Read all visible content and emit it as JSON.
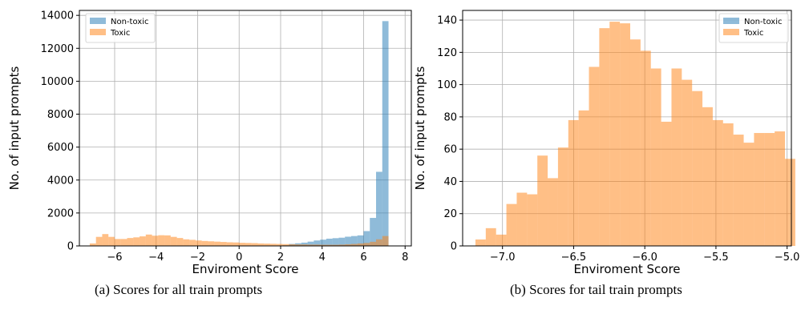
{
  "colors": {
    "non_toxic": "#1f77b4",
    "toxic": "#ff7f0e",
    "grid": "#b0b0b0"
  },
  "captions": [
    "(a) Scores for all train prompts",
    "(b) Scores for tail train prompts"
  ],
  "chart_data": [
    {
      "type": "bar",
      "histogram": true,
      "title": "",
      "xlabel": "Enviroment Score",
      "ylabel": "No. of input prompts",
      "xlim": [
        -7.7,
        8.3
      ],
      "ylim": [
        0,
        14300
      ],
      "xticks": [
        -6,
        -4,
        -2,
        0,
        2,
        4,
        6,
        8
      ],
      "yticks": [
        0,
        2000,
        4000,
        6000,
        8000,
        10000,
        12000,
        14000
      ],
      "xticklabels": [
        "−6",
        "−4",
        "−2",
        "0",
        "2",
        "4",
        "6",
        "8"
      ],
      "yticklabels": [
        "0",
        "2000",
        "4000",
        "6000",
        "8000",
        "10000",
        "12000",
        "14000"
      ],
      "grid": true,
      "legend": "top-left",
      "bin_start": -7.2,
      "bin_width": 0.3,
      "series": [
        {
          "name": "Non-toxic",
          "color": "#1f77b4",
          "alpha": 0.5,
          "values": [
            0,
            0,
            0,
            0,
            0,
            0,
            0,
            0,
            0,
            0,
            0,
            0,
            0,
            0,
            0,
            0,
            0,
            0,
            0,
            0,
            0,
            0,
            0,
            0,
            0,
            0,
            0,
            0,
            0,
            0,
            0,
            40,
            120,
            160,
            200,
            260,
            330,
            380,
            440,
            470,
            500,
            560,
            600,
            640,
            900,
            1700,
            4500,
            13650
          ]
        },
        {
          "name": "Toxic",
          "color": "#ff7f0e",
          "alpha": 0.5,
          "values": [
            150,
            550,
            720,
            550,
            420,
            420,
            480,
            520,
            580,
            690,
            620,
            650,
            640,
            550,
            480,
            400,
            370,
            330,
            300,
            280,
            260,
            240,
            220,
            210,
            190,
            180,
            170,
            150,
            140,
            130,
            120,
            110,
            100,
            90,
            90,
            80,
            80,
            70,
            70,
            70,
            80,
            100,
            120,
            150,
            180,
            250,
            400,
            600
          ]
        }
      ]
    },
    {
      "type": "bar",
      "histogram": true,
      "title": "",
      "xlabel": "Enviroment Score",
      "ylabel": "No. of input prompts",
      "xlim": [
        -7.28,
        -4.97
      ],
      "ylim": [
        0,
        146
      ],
      "xticks": [
        -7.0,
        -6.5,
        -6.0,
        -5.5,
        -5.0
      ],
      "yticks": [
        0,
        20,
        40,
        60,
        80,
        100,
        120,
        140
      ],
      "xticklabels": [
        "−7.0",
        "−6.5",
        "−6.0",
        "−5.5",
        "−5.0"
      ],
      "yticklabels": [
        "0",
        "20",
        "40",
        "60",
        "80",
        "100",
        "120",
        "140"
      ],
      "grid": true,
      "legend": "top-right",
      "bin_start": -7.19,
      "bin_width": 0.0725,
      "series": [
        {
          "name": "Non-toxic",
          "color": "#1f77b4",
          "alpha": 0.5,
          "values": [
            0,
            0,
            0,
            0,
            0,
            0,
            0,
            0,
            0,
            0,
            0,
            0,
            0,
            0,
            0,
            0,
            0,
            0,
            0,
            0,
            0,
            0,
            0,
            0,
            0,
            0,
            0,
            0,
            0,
            0,
            0,
            0
          ]
        },
        {
          "name": "Toxic",
          "color": "#ff7f0e",
          "alpha": 0.5,
          "values": [
            4,
            11,
            7,
            26,
            33,
            32,
            56,
            42,
            61,
            78,
            84,
            111,
            135,
            139,
            138,
            128,
            121,
            110,
            77,
            110,
            103,
            96,
            86,
            78,
            76,
            69,
            64,
            70,
            70,
            71,
            54,
            0
          ]
        }
      ]
    }
  ]
}
